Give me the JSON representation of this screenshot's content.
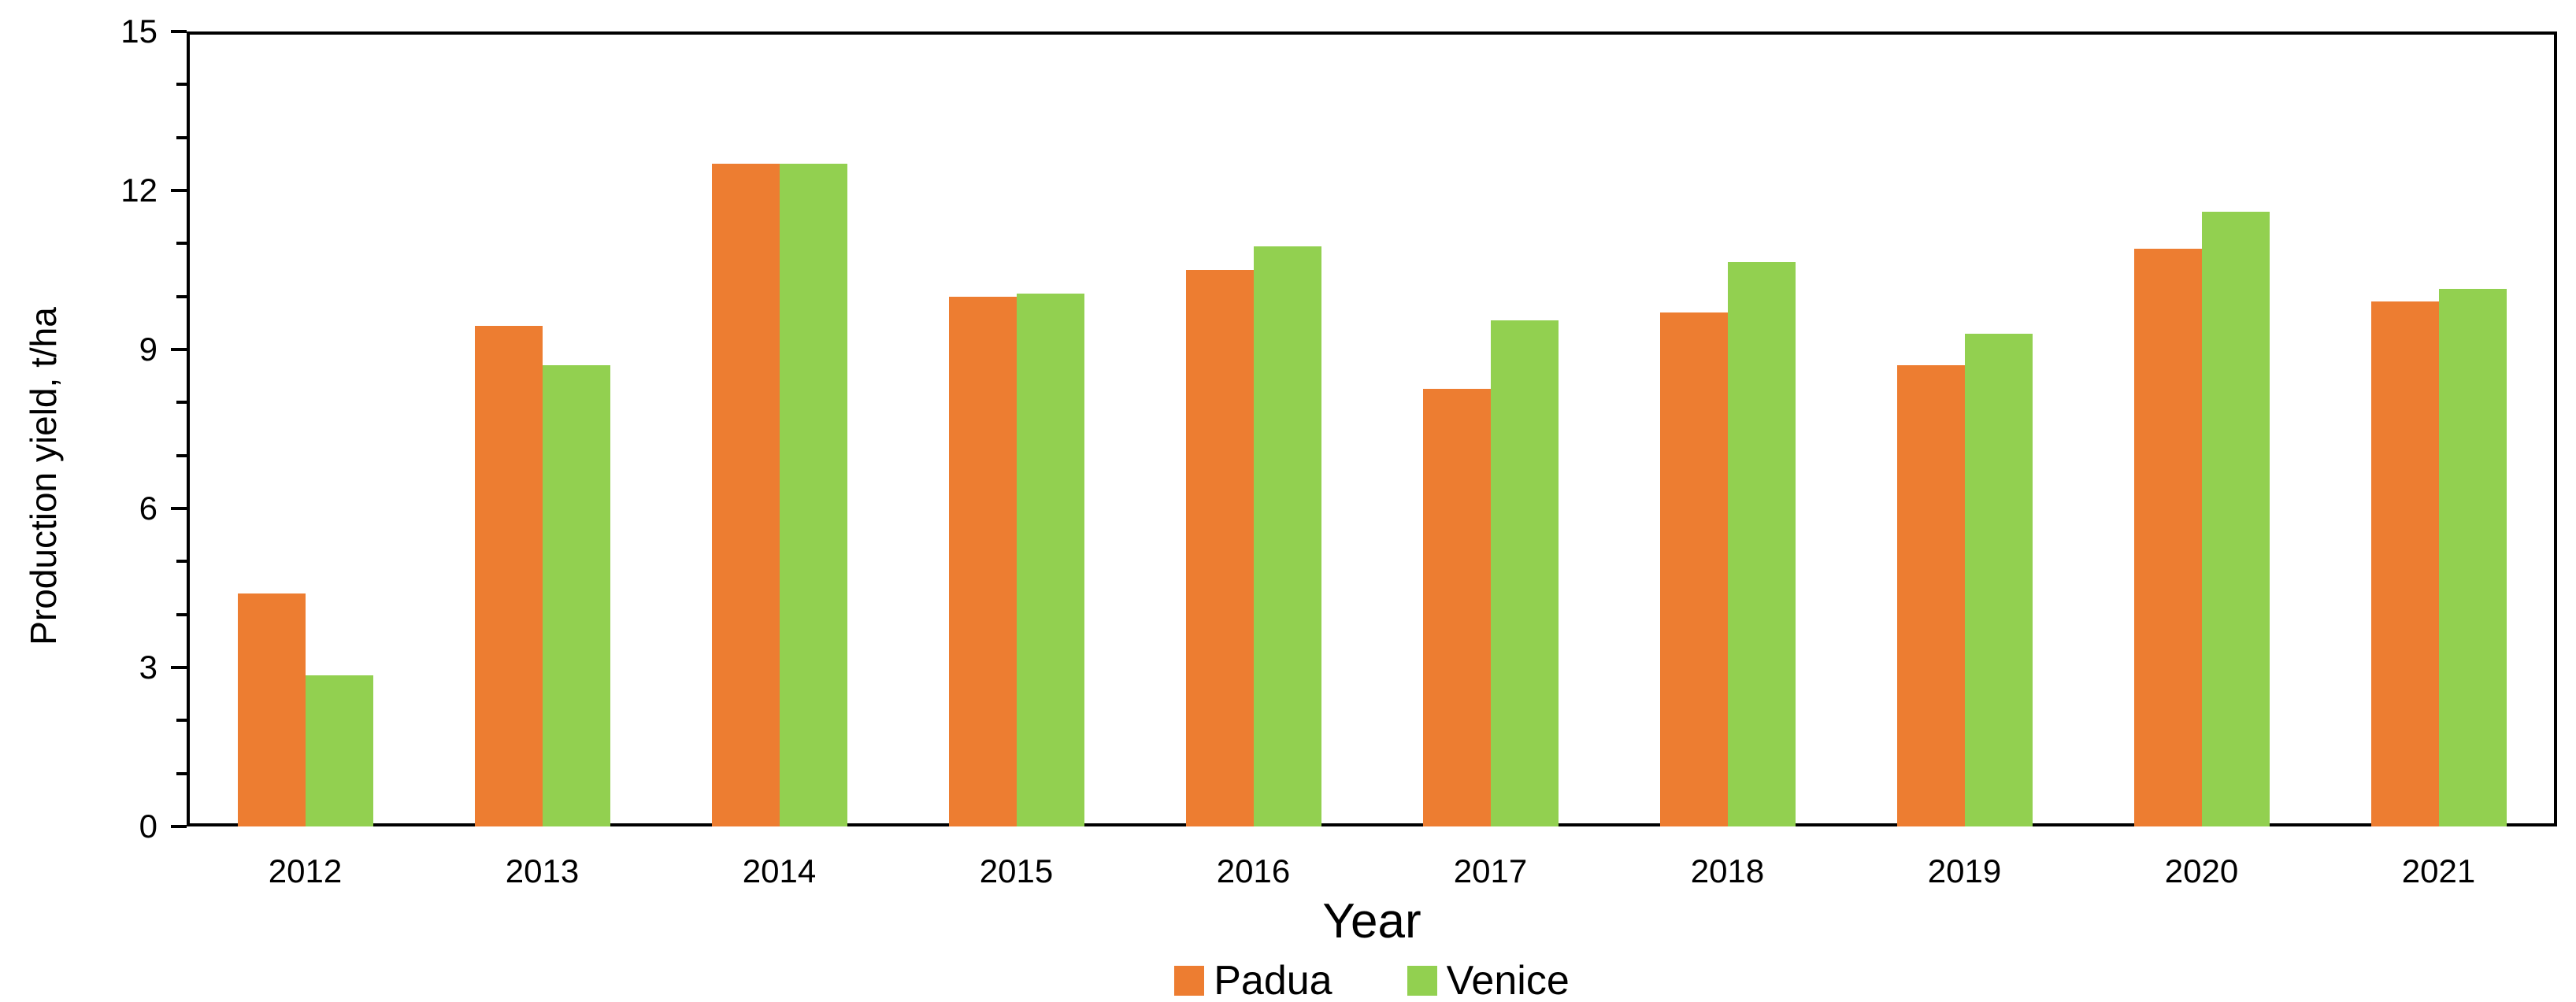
{
  "chart_data": {
    "type": "bar",
    "title": "",
    "xlabel": "Year",
    "ylabel": "Production yield, t/ha",
    "categories": [
      "2012",
      "2013",
      "2014",
      "2015",
      "2016",
      "2017",
      "2018",
      "2019",
      "2020",
      "2021"
    ],
    "series": [
      {
        "name": "Padua",
        "color": "#ED7D31",
        "values": [
          4.4,
          9.45,
          12.5,
          10.0,
          10.5,
          8.25,
          9.7,
          8.7,
          10.9,
          9.9
        ]
      },
      {
        "name": "Venice",
        "color": "#92D050",
        "values": [
          2.85,
          8.7,
          12.5,
          10.05,
          10.95,
          9.55,
          10.65,
          9.3,
          11.6,
          10.15
        ]
      }
    ],
    "ylim": [
      0,
      15
    ],
    "y_major_ticks": [
      0,
      3,
      6,
      9,
      12,
      15
    ],
    "y_minor_tick_step": 1,
    "grid": false,
    "legend_position": "bottom",
    "axis_color": "#000000",
    "background_color": "#FFFFFF"
  }
}
